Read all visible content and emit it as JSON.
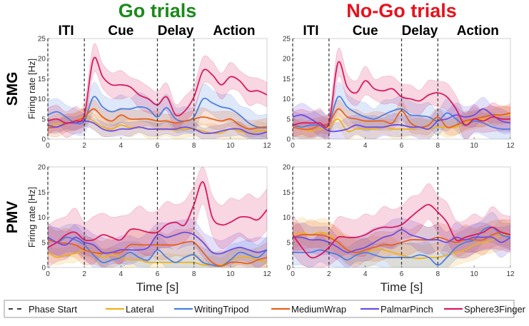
{
  "chart_data": {
    "type": "line",
    "layout": "2x2 grid",
    "columns": [
      {
        "title": "Go trials",
        "color": "#1a8a1a"
      },
      {
        "title": "No-Go trials",
        "color": "#e8121c"
      }
    ],
    "rows": [
      {
        "label": "SMG",
        "ylim": [
          0,
          25
        ],
        "yticks": [
          0,
          5,
          10,
          15,
          20,
          25
        ]
      },
      {
        "label": "PMV",
        "ylim": [
          0,
          20
        ],
        "yticks": [
          0,
          5,
          10,
          15,
          20
        ]
      }
    ],
    "phases": [
      {
        "label": "ITI",
        "center": 1.0
      },
      {
        "label": "Cue",
        "center": 4.0
      },
      {
        "label": "Delay",
        "center": 7.0
      },
      {
        "label": "Action",
        "center": 10.2
      }
    ],
    "phase_starts": [
      0,
      2,
      6,
      8
    ],
    "xlim": [
      0,
      12
    ],
    "xticks": [
      0,
      2,
      4,
      6,
      8,
      10,
      12
    ],
    "xlabel": "Time [s]",
    "ylabel": "Firing rate [Hz]",
    "x": [
      0,
      0.5,
      1,
      1.5,
      2,
      2.5,
      3,
      3.5,
      4,
      4.5,
      5,
      5.5,
      6,
      6.5,
      7,
      7.5,
      8,
      8.5,
      9,
      9.5,
      10,
      10.5,
      11,
      11.5,
      12
    ],
    "series_styles": [
      {
        "name": "Lateral",
        "color": "#edb120"
      },
      {
        "name": "WritingTripod",
        "color": "#4d7fe0"
      },
      {
        "name": "MediumWrap",
        "color": "#e8601c"
      },
      {
        "name": "PalmarPinch",
        "color": "#6a4ee0"
      },
      {
        "name": "Sphere3Finger",
        "color": "#d81b60"
      }
    ],
    "panels": [
      {
        "row": "SMG",
        "column": "Go trials",
        "series": [
          {
            "name": "Lateral",
            "values": [
              3.5,
              3.8,
              4.0,
              4.5,
              5.5,
              4.5,
              3.0,
              2.5,
              3.5,
              2.8,
              3.0,
              2.5,
              2.5,
              2.5,
              2.2,
              2.5,
              2.5,
              2.0,
              1.5,
              1.5,
              2.5,
              2.0,
              1.5,
              2.0,
              2.0
            ],
            "band": 2.0
          },
          {
            "name": "WritingTripod",
            "values": [
              6.0,
              6.8,
              5.5,
              4.0,
              4.5,
              10.5,
              8.0,
              6.8,
              7.5,
              7.5,
              8.0,
              7.5,
              5.5,
              7.8,
              5.0,
              4.5,
              5.5,
              10.0,
              9.0,
              8.0,
              7.5,
              6.0,
              4.0,
              3.0,
              3.0
            ],
            "band": 3.0
          },
          {
            "name": "MediumWrap",
            "values": [
              2.8,
              3.0,
              3.8,
              4.5,
              5.5,
              7.5,
              5.5,
              4.5,
              6.0,
              5.0,
              5.0,
              5.0,
              4.5,
              4.5,
              4.0,
              4.5,
              5.0,
              5.5,
              5.0,
              4.5,
              5.0,
              3.5,
              2.5,
              2.8,
              2.8
            ],
            "band": 2.0
          },
          {
            "name": "PalmarPinch",
            "values": [
              3.5,
              3.0,
              4.0,
              4.0,
              4.5,
              4.0,
              2.5,
              2.0,
              2.5,
              2.5,
              3.0,
              2.5,
              2.5,
              2.5,
              2.5,
              3.0,
              2.5,
              1.5,
              1.5,
              2.0,
              2.5,
              2.5,
              1.5,
              1.2,
              1.8
            ],
            "band": 1.5
          },
          {
            "name": "Sphere3Finger",
            "values": [
              4.5,
              5.0,
              4.0,
              4.5,
              6.0,
              20.0,
              15.5,
              13.5,
              13.5,
              13.0,
              11.0,
              10.0,
              8.5,
              10.5,
              6.0,
              7.0,
              10.5,
              17.0,
              16.0,
              13.5,
              15.5,
              14.5,
              12.0,
              12.0,
              11.0
            ],
            "band": 3.0
          }
        ]
      },
      {
        "row": "SMG",
        "column": "No-Go trials",
        "series": [
          {
            "name": "Lateral",
            "values": [
              3.0,
              2.5,
              2.0,
              2.5,
              3.0,
              5.0,
              2.0,
              2.5,
              2.5,
              2.5,
              3.0,
              2.5,
              2.5,
              2.5,
              3.0,
              2.5,
              3.0,
              2.8,
              3.0,
              4.0,
              5.0,
              5.0,
              5.5,
              6.0,
              6.0
            ],
            "band": 2.0
          },
          {
            "name": "WritingTripod",
            "values": [
              3.5,
              3.0,
              3.5,
              3.5,
              4.0,
              10.5,
              8.0,
              6.5,
              5.5,
              5.0,
              6.0,
              7.0,
              7.5,
              6.0,
              5.8,
              5.5,
              4.5,
              6.5,
              5.0,
              3.5,
              4.5,
              4.0,
              3.0,
              2.5,
              2.5
            ],
            "band": 3.0
          },
          {
            "name": "MediumWrap",
            "values": [
              3.0,
              2.5,
              2.5,
              3.5,
              4.0,
              7.5,
              5.5,
              5.0,
              4.5,
              4.5,
              4.5,
              4.0,
              7.0,
              4.0,
              3.0,
              3.5,
              5.5,
              3.0,
              3.5,
              4.5,
              5.0,
              5.5,
              6.0,
              6.0,
              6.5
            ],
            "band": 2.0
          },
          {
            "name": "PalmarPinch",
            "values": [
              5.5,
              6.0,
              5.0,
              3.5,
              2.0,
              2.0,
              2.5,
              3.5,
              3.0,
              3.0,
              3.0,
              3.5,
              3.5,
              3.0,
              3.0,
              2.5,
              4.5,
              5.0,
              6.0,
              5.5,
              6.0,
              7.5,
              6.0,
              4.5,
              4.0
            ],
            "band": 2.5
          },
          {
            "name": "Sphere3Finger",
            "values": [
              3.5,
              4.0,
              4.0,
              4.0,
              4.0,
              19.0,
              13.0,
              11.5,
              14.5,
              12.5,
              12.0,
              12.5,
              10.5,
              10.0,
              9.5,
              11.0,
              11.5,
              10.5,
              7.5,
              3.5,
              5.0,
              4.5,
              5.5,
              5.0,
              5.0
            ],
            "band": 3.0
          }
        ]
      },
      {
        "row": "PMV",
        "column": "Go trials",
        "series": [
          {
            "name": "Lateral",
            "values": [
              3.0,
              2.0,
              2.5,
              2.8,
              3.5,
              3.0,
              2.0,
              2.5,
              2.0,
              1.5,
              1.5,
              1.0,
              1.0,
              1.0,
              1.0,
              1.0,
              1.0,
              0.5,
              0.5,
              0.5,
              1.5,
              2.0,
              2.0,
              1.5,
              1.0
            ],
            "band": 1.5
          },
          {
            "name": "WritingTripod",
            "values": [
              6.0,
              5.0,
              6.0,
              5.5,
              4.5,
              2.5,
              1.0,
              1.5,
              2.0,
              3.0,
              2.0,
              1.5,
              3.5,
              2.0,
              1.0,
              2.0,
              2.5,
              1.0,
              0.5,
              0.3,
              1.5,
              3.0,
              2.5,
              2.0,
              3.5
            ],
            "band": 2.5
          },
          {
            "name": "MediumWrap",
            "values": [
              5.5,
              5.0,
              4.8,
              4.5,
              3.5,
              3.0,
              2.8,
              3.0,
              3.0,
              4.5,
              4.5,
              4.5,
              4.5,
              4.5,
              4.5,
              5.0,
              5.0,
              3.0,
              1.0,
              0.3,
              1.0,
              1.0,
              0.8,
              1.5,
              2.0
            ],
            "band": 2.5
          },
          {
            "name": "PalmarPinch",
            "values": [
              6.0,
              5.0,
              4.5,
              6.0,
              5.0,
              4.5,
              3.0,
              3.0,
              3.5,
              3.5,
              3.5,
              4.0,
              6.5,
              6.0,
              6.5,
              7.0,
              6.5,
              5.0,
              3.0,
              2.8,
              3.5,
              4.0,
              3.5,
              3.0,
              3.5
            ],
            "band": 2.5
          },
          {
            "name": "Sphere3Finger",
            "values": [
              4.0,
              5.0,
              6.5,
              7.0,
              5.5,
              5.5,
              6.5,
              6.0,
              5.5,
              7.5,
              7.5,
              7.0,
              7.0,
              8.5,
              9.0,
              8.5,
              12.5,
              17.0,
              10.0,
              8.5,
              9.0,
              10.0,
              10.0,
              9.5,
              11.5
            ],
            "band": 4.0
          }
        ]
      },
      {
        "row": "PMV",
        "column": "No-Go trials",
        "series": [
          {
            "name": "Lateral",
            "values": [
              6.5,
              7.0,
              6.5,
              7.0,
              6.5,
              5.0,
              3.5,
              3.0,
              3.0,
              3.5,
              3.5,
              3.0,
              2.5,
              2.0,
              1.8,
              2.0,
              2.0,
              2.5,
              3.0,
              3.5,
              4.5,
              5.0,
              5.5,
              6.5,
              6.5
            ],
            "band": 2.5
          },
          {
            "name": "WritingTripod",
            "values": [
              3.0,
              3.0,
              3.0,
              3.5,
              3.0,
              2.5,
              1.5,
              2.5,
              3.0,
              2.5,
              2.0,
              2.0,
              2.0,
              2.0,
              2.5,
              2.0,
              0.5,
              2.0,
              4.0,
              5.0,
              5.5,
              7.5,
              8.0,
              6.5,
              6.0
            ],
            "band": 2.5
          },
          {
            "name": "MediumWrap",
            "values": [
              6.0,
              6.5,
              6.5,
              6.5,
              6.0,
              5.0,
              3.5,
              3.0,
              3.5,
              4.0,
              4.5,
              4.5,
              5.0,
              5.5,
              5.5,
              5.5,
              6.0,
              5.5,
              5.0,
              5.5,
              5.5,
              5.5,
              6.5,
              7.0,
              6.5
            ],
            "band": 2.5
          },
          {
            "name": "PalmarPinch",
            "values": [
              6.0,
              6.0,
              5.5,
              5.5,
              5.0,
              4.0,
              3.0,
              3.5,
              4.0,
              5.0,
              6.0,
              6.5,
              7.5,
              6.5,
              6.0,
              5.5,
              5.5,
              5.0,
              6.0,
              5.5,
              6.0,
              6.0,
              6.0,
              5.0,
              6.0
            ],
            "band": 2.5
          },
          {
            "name": "Sphere3Finger",
            "values": [
              6.5,
              4.0,
              2.0,
              2.5,
              4.0,
              6.0,
              6.0,
              6.0,
              6.5,
              7.5,
              8.0,
              8.0,
              8.5,
              10.0,
              11.5,
              12.5,
              11.0,
              9.0,
              5.5,
              6.0,
              6.5,
              7.0,
              8.0,
              7.0,
              6.5
            ],
            "band": 3.5
          }
        ]
      }
    ],
    "legend": {
      "placement": "bottom",
      "entries": [
        {
          "label": "Phase Start",
          "style": "dashed",
          "color": "#222222"
        },
        {
          "label": "Lateral",
          "style": "solid",
          "color": "#edb120"
        },
        {
          "label": "WritingTripod",
          "style": "solid",
          "color": "#4d7fe0"
        },
        {
          "label": "MediumWrap",
          "style": "solid",
          "color": "#e8601c"
        },
        {
          "label": "PalmarPinch",
          "style": "solid",
          "color": "#6a4ee0"
        },
        {
          "label": "Sphere3Finger",
          "style": "solid",
          "color": "#d81b60"
        }
      ]
    }
  }
}
